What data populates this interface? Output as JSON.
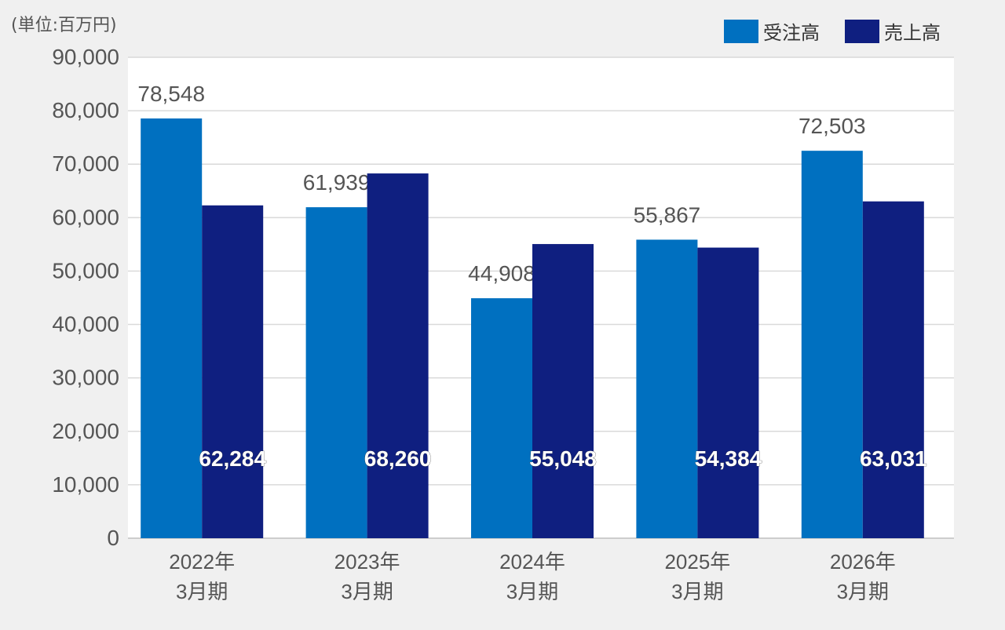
{
  "unit_label": "(単位:百万円)",
  "legend": [
    {
      "label": "受注高",
      "color": "#0070c0"
    },
    {
      "label": "売上高",
      "color": "#0f1f80"
    }
  ],
  "chart_data": {
    "type": "bar",
    "categories": [
      [
        "2022年",
        "3月期"
      ],
      [
        "2023年",
        "3月期"
      ],
      [
        "2024年",
        "3月期"
      ],
      [
        "2025年",
        "3月期"
      ],
      [
        "2026年",
        "3月期"
      ]
    ],
    "series": [
      {
        "name": "受注高",
        "color": "#0070c0",
        "values": [
          78548,
          61939,
          44908,
          55867,
          72503
        ],
        "labels": [
          "78,548",
          "61,939",
          "44,908",
          "55,867",
          "72,503"
        ]
      },
      {
        "name": "売上高",
        "color": "#0f1f80",
        "values": [
          62284,
          68260,
          55048,
          54384,
          63031
        ],
        "labels": [
          "62,284",
          "68,260",
          "55,048",
          "54,384",
          "63,031"
        ]
      }
    ],
    "ylim": [
      0,
      90000
    ],
    "yticks": [
      0,
      10000,
      20000,
      30000,
      40000,
      50000,
      60000,
      70000,
      80000,
      90000
    ],
    "ytick_labels": [
      "0",
      "10,000",
      "20,000",
      "30,000",
      "40,000",
      "50,000",
      "60,000",
      "70,000",
      "80,000",
      "90,000"
    ],
    "grid": true,
    "legend_position": "top-right"
  }
}
